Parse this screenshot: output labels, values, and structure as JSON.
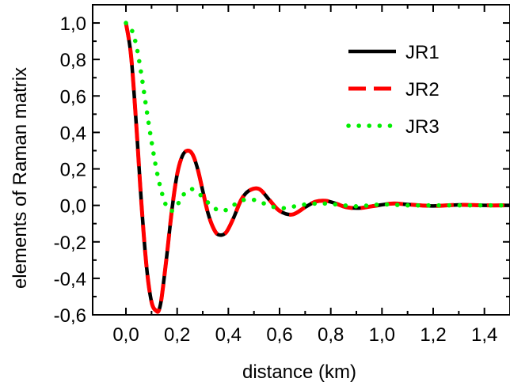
{
  "chart_data": {
    "type": "line",
    "xlabel": "distance (km)",
    "ylabel": "elements of Raman matrix",
    "xlim": [
      -0.13,
      1.5
    ],
    "ylim": [
      -0.6,
      1.1
    ],
    "x_ticks": [
      "0,0",
      "0,2",
      "0,4",
      "0,6",
      "0,8",
      "1,0",
      "1,2",
      "1,4"
    ],
    "y_ticks": [
      "-0,6",
      "-0,4",
      "-0,2",
      "0,0",
      "0,2",
      "0,4",
      "0,6",
      "0,8",
      "1,0"
    ],
    "legend_position": "top-right",
    "grid": false,
    "series": [
      {
        "name": "JR1",
        "color": "#000000",
        "style": "solid",
        "x": [
          0.0,
          0.02,
          0.04,
          0.06,
          0.08,
          0.1,
          0.12,
          0.13,
          0.14,
          0.16,
          0.18,
          0.2,
          0.22,
          0.24,
          0.26,
          0.28,
          0.3,
          0.32,
          0.34,
          0.36,
          0.39,
          0.42,
          0.45,
          0.48,
          0.52,
          0.56,
          0.6,
          0.65,
          0.7,
          0.74,
          0.78,
          0.82,
          0.86,
          0.91,
          0.96,
          1.04,
          1.1,
          1.2,
          1.3,
          1.4,
          1.5
        ],
        "y": [
          1.0,
          0.82,
          0.45,
          0.02,
          -0.33,
          -0.53,
          -0.58,
          -0.57,
          -0.5,
          -0.27,
          -0.02,
          0.17,
          0.27,
          0.3,
          0.28,
          0.2,
          0.08,
          -0.04,
          -0.12,
          -0.16,
          -0.15,
          -0.07,
          0.03,
          0.08,
          0.09,
          0.03,
          -0.03,
          -0.05,
          -0.01,
          0.02,
          0.025,
          0.01,
          -0.01,
          -0.015,
          -0.005,
          0.01,
          0.005,
          -0.003,
          0.003,
          0.0,
          0.0
        ]
      },
      {
        "name": "JR2",
        "color": "#ff0000",
        "style": "dashed",
        "x": [
          0.0,
          0.02,
          0.04,
          0.06,
          0.08,
          0.1,
          0.12,
          0.13,
          0.14,
          0.16,
          0.18,
          0.2,
          0.22,
          0.24,
          0.26,
          0.28,
          0.3,
          0.32,
          0.34,
          0.36,
          0.39,
          0.42,
          0.45,
          0.48,
          0.52,
          0.56,
          0.6,
          0.65,
          0.7,
          0.74,
          0.78,
          0.82,
          0.86,
          0.91,
          0.96,
          1.04,
          1.1,
          1.2,
          1.3,
          1.4,
          1.5
        ],
        "y": [
          1.0,
          0.82,
          0.45,
          0.02,
          -0.33,
          -0.53,
          -0.58,
          -0.57,
          -0.5,
          -0.27,
          -0.02,
          0.17,
          0.27,
          0.3,
          0.28,
          0.2,
          0.08,
          -0.04,
          -0.12,
          -0.16,
          -0.15,
          -0.07,
          0.03,
          0.08,
          0.09,
          0.03,
          -0.03,
          -0.05,
          -0.01,
          0.02,
          0.025,
          0.01,
          -0.01,
          -0.015,
          -0.005,
          0.01,
          0.005,
          -0.003,
          0.003,
          0.0,
          0.0
        ]
      },
      {
        "name": "JR3",
        "color": "#00ee00",
        "style": "dotted",
        "x": [
          0.0,
          0.02,
          0.04,
          0.06,
          0.08,
          0.1,
          0.12,
          0.14,
          0.16,
          0.18,
          0.2,
          0.22,
          0.25,
          0.28,
          0.31,
          0.34,
          0.37,
          0.4,
          0.43,
          0.46,
          0.5,
          0.54,
          0.58,
          0.62,
          0.66,
          0.7,
          0.75,
          0.8,
          0.85,
          0.9,
          0.95,
          1.0,
          1.05,
          1.1,
          1.2,
          1.3,
          1.4,
          1.5
        ],
        "y": [
          1.0,
          0.97,
          0.88,
          0.72,
          0.53,
          0.35,
          0.19,
          0.07,
          -0.01,
          -0.03,
          0.0,
          0.05,
          0.09,
          0.07,
          0.03,
          -0.01,
          -0.03,
          -0.02,
          0.01,
          0.03,
          0.03,
          0.01,
          -0.01,
          -0.015,
          -0.005,
          0.005,
          0.01,
          0.008,
          0.0,
          -0.005,
          0.0,
          0.005,
          0.003,
          0.0,
          0.0,
          0.0,
          0.0,
          0.0
        ]
      }
    ]
  }
}
